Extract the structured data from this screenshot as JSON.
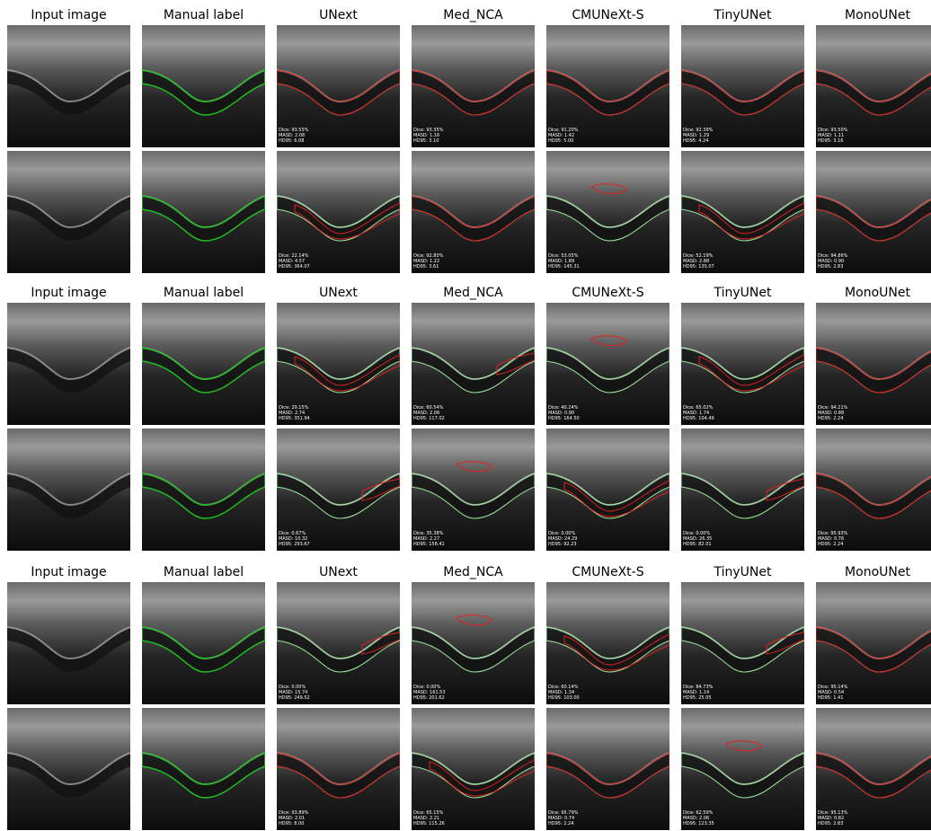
{
  "groups": [
    {
      "headers": [
        "Input image",
        "Manual label",
        "UNext",
        "Med_NCA",
        "CMUNeXt-S",
        "TinyUNet",
        "MonoUNet"
      ],
      "rows": [
        {
          "metrics": [
            [
              "Dice: 93.55%",
              "MASD: 2.08",
              "HD95: 6.08"
            ],
            [
              "Dice: 93.35%",
              "MASD: 1.16",
              "HD95: 3.10"
            ],
            [
              "Dice: 91.20%",
              "MASD: 1.42",
              "HD95: 5.00"
            ],
            [
              "Dice: 92.39%",
              "MASD: 1.29",
              "HD95: 4.24"
            ],
            [
              "Dice: 93.50%",
              "MASD: 1.11",
              "HD95: 3.16"
            ]
          ]
        },
        {
          "metrics": [
            [
              "Dice: 22.14%",
              "MASD: 4.57",
              "HD95: 364.07"
            ],
            [
              "Dice: 92.80%",
              "MASD: 1.22",
              "HD95: 3.61"
            ],
            [
              "Dice: 53.05%",
              "MASD: 1.89",
              "HD95: 145.31"
            ],
            [
              "Dice: 52.19%",
              "MASD: 2.88",
              "HD95: 135.07"
            ],
            [
              "Dice: 94.86%",
              "MASD: 0.90",
              "HD95: 2.83"
            ]
          ]
        }
      ]
    },
    {
      "headers": [
        "Input image",
        "Manual label",
        "UNext",
        "Med_NCA",
        "CMUNeXt-S",
        "TinyUNet",
        "MonoUNet"
      ],
      "rows": [
        {
          "metrics": [
            [
              "Dice: 29.15%",
              "MASD: 2.74",
              "HD95: 351.94"
            ],
            [
              "Dice: 60.54%",
              "MASD: 2.06",
              "HD95: 117.02"
            ],
            [
              "Dice: 40.24%",
              "MASD: 0.90",
              "HD95: 164.50"
            ],
            [
              "Dice: 65.02%",
              "MASD: 1.74",
              "HD95: 104.49"
            ],
            [
              "Dice: 94.21%",
              "MASD: 0.88",
              "HD95: 2.24"
            ]
          ]
        },
        {
          "metrics": [
            [
              "Dice: 0.67%",
              "MASD: 10.32",
              "HD95: 293.67"
            ],
            [
              "Dice: 35.38%",
              "MASD: 2.27",
              "HD95: 158.41"
            ],
            [
              "Dice: 0.00%",
              "MASD: 24.29",
              "HD95: 92.23"
            ],
            [
              "Dice: 0.00%",
              "MASD: 26.35",
              "HD95: 82.01"
            ],
            [
              "Dice: 95.93%",
              "MASD: 0.76",
              "HD95: 2.24"
            ]
          ]
        }
      ]
    },
    {
      "headers": [
        "Input image",
        "Manual label",
        "UNext",
        "Med_NCA",
        "CMUNeXt-S",
        "TinyUNet",
        "MonoUNet"
      ],
      "rows": [
        {
          "metrics": [
            [
              "Dice: 0.00%",
              "MASD: 15.74",
              "HD95: 249.52"
            ],
            [
              "Dice: 0.00%",
              "MASD: 161.53",
              "HD95: 201.62"
            ],
            [
              "Dice: 60.14%",
              "MASD: 1.34",
              "HD95: 103.00"
            ],
            [
              "Dice: 84.73%",
              "MASD: 1.14",
              "HD95: 25.05"
            ],
            [
              "Dice: 95.14%",
              "MASD: 0.54",
              "HD95: 1.41"
            ]
          ]
        },
        {
          "metrics": [
            [
              "Dice: 93.89%",
              "MASD: 2.01",
              "HD95: 8.00"
            ],
            [
              "Dice: 65.15%",
              "MASD: 2.21",
              "HD95: 115.26"
            ],
            [
              "Dice: 95.79%",
              "MASD: 0.74",
              "HD95: 2.24"
            ],
            [
              "Dice: 62.59%",
              "MASD: 2.06",
              "HD95: 123.35"
            ],
            [
              "Dice: 95.13%",
              "MASD: 0.82",
              "HD95: 2.83"
            ]
          ]
        }
      ]
    }
  ]
}
